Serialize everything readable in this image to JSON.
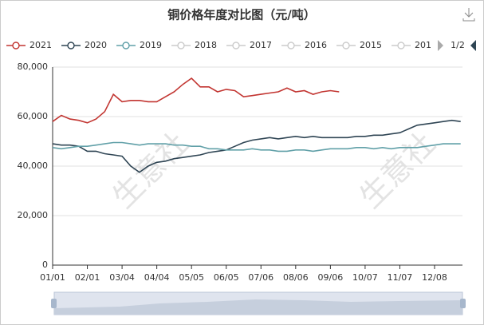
{
  "chart_data": {
    "type": "line",
    "title": "铜价格年度对比图（元/吨）",
    "watermark": "生意社",
    "legend_page": "1/2",
    "categories": [
      "01/01",
      null,
      null,
      null,
      "02/01",
      null,
      null,
      null,
      "03/04",
      null,
      null,
      null,
      "04/04",
      null,
      null,
      null,
      "05/05",
      null,
      null,
      null,
      "06/05",
      null,
      null,
      null,
      "07/06",
      null,
      null,
      null,
      "08/06",
      null,
      null,
      null,
      "09/06",
      null,
      null,
      null,
      "10/07",
      null,
      null,
      null,
      "11/07",
      null,
      null,
      null,
      "12/08",
      null,
      null,
      null
    ],
    "series": [
      {
        "name": "2021",
        "color": "#c23531",
        "values": [
          58000,
          60500,
          59000,
          58500,
          57500,
          59000,
          62000,
          69000,
          66000,
          66500,
          66500,
          66000,
          66000,
          68000,
          70000,
          73000,
          75500,
          72000,
          72000,
          70000,
          71000,
          70500,
          68000,
          68500,
          69000,
          69500,
          70000,
          71500,
          70000,
          70500,
          69000,
          70000,
          70500,
          70000,
          null,
          null,
          null,
          null,
          null,
          null,
          null,
          null,
          null,
          null,
          null,
          null,
          null,
          null
        ]
      },
      {
        "name": "2020",
        "color": "#2f4554",
        "values": [
          49000,
          48500,
          48500,
          48000,
          46000,
          46000,
          45000,
          44500,
          44000,
          40000,
          37500,
          40000,
          41500,
          42000,
          43000,
          43500,
          44000,
          44500,
          45500,
          46000,
          46500,
          48000,
          49500,
          50500,
          51000,
          51500,
          51000,
          51500,
          52000,
          51500,
          52000,
          51500,
          51500,
          51500,
          51500,
          52000,
          52000,
          52500,
          52500,
          53000,
          53500,
          55000,
          56500,
          57000,
          57500,
          58000,
          58500,
          58000
        ]
      },
      {
        "name": "2019",
        "color": "#61a0a8",
        "values": [
          47500,
          47000,
          47500,
          48000,
          48000,
          48500,
          49000,
          49500,
          49500,
          49000,
          48500,
          49000,
          49000,
          49000,
          48500,
          48500,
          48000,
          48000,
          47000,
          47000,
          46500,
          46500,
          46500,
          47000,
          46500,
          46500,
          46000,
          46000,
          46500,
          46500,
          46000,
          46500,
          47000,
          47000,
          47000,
          47500,
          47500,
          47000,
          47500,
          47000,
          47500,
          47500,
          47500,
          48000,
          48500,
          49000,
          49000,
          49000
        ]
      }
    ],
    "hidden_series": [
      "2018",
      "2017",
      "2016",
      "2015",
      "201"
    ],
    "hidden_color": "#cccccc",
    "ylim": [
      0,
      80000
    ],
    "yticks": [
      0,
      {
        "value": 20000,
        "label": "20,000"
      },
      {
        "value": 40000,
        "label": "40,000"
      },
      {
        "value": 60000,
        "label": "60,000"
      },
      {
        "value": 80000,
        "label": "80,000"
      }
    ],
    "grid": true
  }
}
